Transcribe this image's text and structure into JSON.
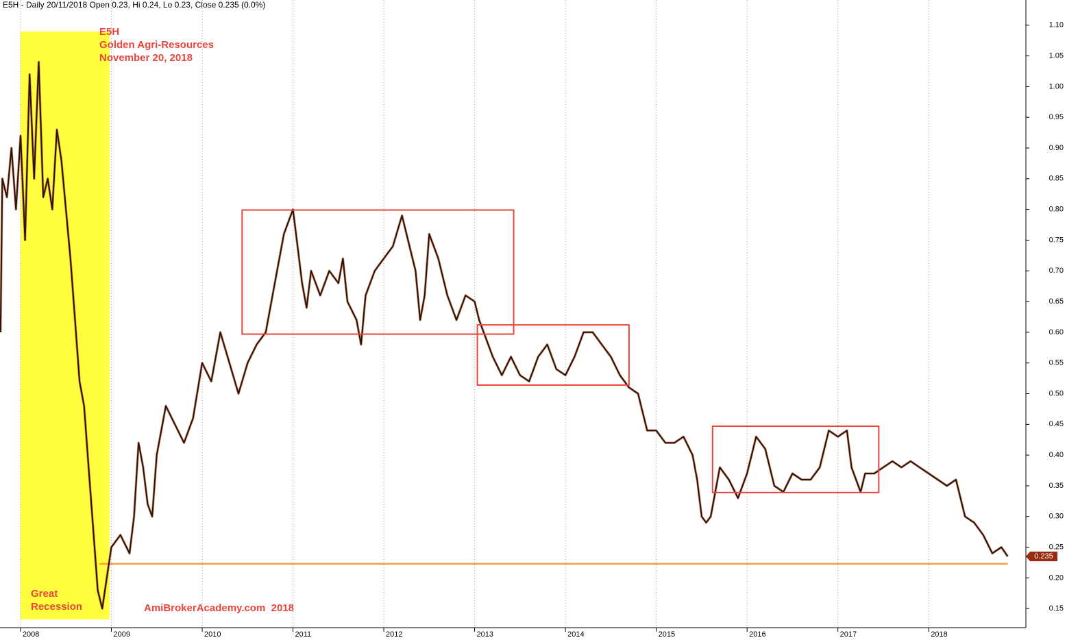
{
  "chart_data": {
    "type": "line",
    "title": "E5H - Daily 20/11/2018 Open 0.23, Hi 0.24, Lo 0.23, Close 0.235 (0.0%)",
    "annotations": [
      "E5H",
      "Golden Agri-Resources",
      "November 20, 2018"
    ],
    "recession_label": [
      "Great",
      "Recession"
    ],
    "footer": "AmiBrokerAcademy.com  2018",
    "xlim": [
      2007.774,
      2019.07
    ],
    "ylim": [
      0.119,
      1.141
    ],
    "xticks": [
      2008,
      2009,
      2010,
      2011,
      2012,
      2013,
      2014,
      2015,
      2016,
      2017,
      2018
    ],
    "yticks": [
      {
        "value": 0.15,
        "label": "0.15"
      },
      {
        "value": 0.2,
        "label": "0.20"
      },
      {
        "value": 0.25,
        "label": "0.25"
      },
      {
        "value": 0.3,
        "label": "0.30"
      },
      {
        "value": 0.35,
        "label": "0.35"
      },
      {
        "value": 0.4,
        "label": "0.40"
      },
      {
        "value": 0.45,
        "label": "0.45"
      },
      {
        "value": 0.5,
        "label": "0.50"
      },
      {
        "value": 0.55,
        "label": "0.55"
      },
      {
        "value": 0.6,
        "label": "0.60"
      },
      {
        "value": 0.65,
        "label": "0.65"
      },
      {
        "value": 0.7,
        "label": "0.70"
      },
      {
        "value": 0.75,
        "label": "0.75"
      },
      {
        "value": 0.8,
        "label": "0.80"
      },
      {
        "value": 0.85,
        "label": "0.85"
      },
      {
        "value": 0.9,
        "label": "0.90"
      },
      {
        "value": 0.95,
        "label": "0.95"
      },
      {
        "value": 1.0,
        "label": "1.00"
      },
      {
        "value": 1.05,
        "label": "1.05"
      },
      {
        "value": 1.1,
        "label": "1.10"
      }
    ],
    "grid": true,
    "highlight": {
      "x": [
        2008.0,
        2008.98
      ],
      "color": "#ffff40"
    },
    "support_line": {
      "x": [
        2008.87,
        2018.87
      ],
      "y": 0.223,
      "color": "#f5a040"
    },
    "rectangles": [
      {
        "x": [
          2010.44,
          2013.43
        ],
        "y": [
          0.597,
          0.799
        ]
      },
      {
        "x": [
          2013.03,
          2014.7
        ],
        "y": [
          0.514,
          0.612
        ]
      },
      {
        "x": [
          2015.62,
          2017.45
        ],
        "y": [
          0.339,
          0.447
        ]
      }
    ],
    "rect_color": "#e8463c",
    "series": [
      {
        "name": "E5H",
        "color": "#2a1208",
        "x": [
          2007.78,
          2007.8,
          2007.85,
          2007.9,
          2007.95,
          2008.0,
          2008.05,
          2008.1,
          2008.15,
          2008.2,
          2008.25,
          2008.3,
          2008.35,
          2008.4,
          2008.45,
          2008.5,
          2008.55,
          2008.6,
          2008.65,
          2008.7,
          2008.75,
          2008.8,
          2008.85,
          2008.9,
          2008.95,
          2009.0,
          2009.1,
          2009.2,
          2009.25,
          2009.3,
          2009.35,
          2009.4,
          2009.45,
          2009.5,
          2009.6,
          2009.7,
          2009.8,
          2009.9,
          2010.0,
          2010.1,
          2010.2,
          2010.3,
          2010.4,
          2010.5,
          2010.6,
          2010.7,
          2010.8,
          2010.9,
          2011.0,
          2011.05,
          2011.1,
          2011.15,
          2011.2,
          2011.3,
          2011.4,
          2011.5,
          2011.55,
          2011.6,
          2011.7,
          2011.75,
          2011.8,
          2011.9,
          2012.0,
          2012.1,
          2012.2,
          2012.25,
          2012.35,
          2012.4,
          2012.45,
          2012.5,
          2012.6,
          2012.7,
          2012.8,
          2012.9,
          2013.0,
          2013.05,
          2013.1,
          2013.2,
          2013.3,
          2013.4,
          2013.5,
          2013.6,
          2013.7,
          2013.8,
          2013.9,
          2014.0,
          2014.1,
          2014.2,
          2014.3,
          2014.4,
          2014.5,
          2014.6,
          2014.7,
          2014.8,
          2014.85,
          2014.9,
          2015.0,
          2015.1,
          2015.2,
          2015.3,
          2015.4,
          2015.45,
          2015.5,
          2015.55,
          2015.6,
          2015.7,
          2015.8,
          2015.9,
          2016.0,
          2016.05,
          2016.1,
          2016.2,
          2016.3,
          2016.4,
          2016.5,
          2016.6,
          2016.7,
          2016.8,
          2016.85,
          2016.9,
          2017.0,
          2017.1,
          2017.15,
          2017.2,
          2017.25,
          2017.3,
          2017.4,
          2017.5,
          2017.6,
          2017.7,
          2017.8,
          2017.9,
          2018.0,
          2018.1,
          2018.2,
          2018.3,
          2018.4,
          2018.5,
          2018.6,
          2018.7,
          2018.8,
          2018.87
        ],
        "values": [
          0.6,
          0.85,
          0.82,
          0.9,
          0.8,
          0.92,
          0.75,
          1.02,
          0.85,
          1.04,
          0.82,
          0.85,
          0.8,
          0.93,
          0.88,
          0.8,
          0.72,
          0.62,
          0.52,
          0.48,
          0.38,
          0.28,
          0.18,
          0.15,
          0.2,
          0.25,
          0.27,
          0.24,
          0.3,
          0.42,
          0.38,
          0.32,
          0.3,
          0.4,
          0.48,
          0.45,
          0.42,
          0.46,
          0.55,
          0.52,
          0.6,
          0.55,
          0.5,
          0.55,
          0.58,
          0.6,
          0.68,
          0.76,
          0.8,
          0.74,
          0.68,
          0.64,
          0.7,
          0.66,
          0.7,
          0.68,
          0.72,
          0.65,
          0.62,
          0.58,
          0.66,
          0.7,
          0.72,
          0.74,
          0.79,
          0.76,
          0.7,
          0.62,
          0.66,
          0.76,
          0.72,
          0.66,
          0.62,
          0.66,
          0.65,
          0.62,
          0.6,
          0.56,
          0.53,
          0.56,
          0.53,
          0.52,
          0.56,
          0.58,
          0.54,
          0.53,
          0.56,
          0.6,
          0.6,
          0.58,
          0.56,
          0.53,
          0.51,
          0.5,
          0.47,
          0.44,
          0.44,
          0.42,
          0.42,
          0.43,
          0.4,
          0.36,
          0.3,
          0.29,
          0.3,
          0.38,
          0.36,
          0.33,
          0.37,
          0.4,
          0.43,
          0.41,
          0.35,
          0.34,
          0.37,
          0.36,
          0.36,
          0.38,
          0.41,
          0.44,
          0.43,
          0.44,
          0.38,
          0.36,
          0.34,
          0.37,
          0.37,
          0.38,
          0.39,
          0.38,
          0.39,
          0.38,
          0.37,
          0.36,
          0.35,
          0.36,
          0.3,
          0.29,
          0.27,
          0.24,
          0.25,
          0.235
        ]
      }
    ]
  }
}
